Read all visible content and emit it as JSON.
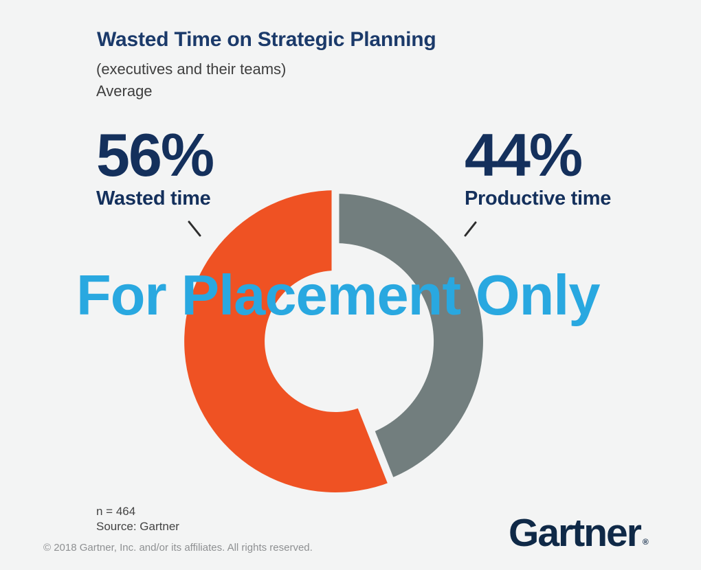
{
  "header": {
    "title": "Wasted Time on Strategic Planning",
    "subtitle1": "(executives and their teams)",
    "subtitle2": "Average"
  },
  "callouts": {
    "left": {
      "value": "56%",
      "label": "Wasted time"
    },
    "right": {
      "value": "44%",
      "label": "Productive time"
    }
  },
  "watermark": "For Placement Only",
  "footnotes": {
    "n": "n = 464",
    "source": "Source: Gartner"
  },
  "copyright": "© 2018 Gartner, Inc. and/or its affiliates. All rights reserved.",
  "logo": {
    "text": "Gartner",
    "registered": "®"
  },
  "colors": {
    "background": "#f3f4f4",
    "navy_title": "#1b3a6a",
    "navy_dark": "#14305c",
    "logo_navy": "#0f2947",
    "watermark_blue": "#29a8e0",
    "text_dark": "#3e3e3e",
    "footnote_gray": "#434343",
    "copyright_gray": "#8e9092",
    "callout_line": "#2d2d2d"
  },
  "chart_data": {
    "type": "donut",
    "title": "Wasted Time on Strategic Planning",
    "subtitle": "(executives and their teams) Average",
    "units": "percent of time",
    "n": 464,
    "source": "Gartner",
    "start_angle_deg": 0,
    "direction": "clockwise",
    "slices": [
      {
        "label": "Productive time",
        "value": 44,
        "color": "#727e7e"
      },
      {
        "label": "Wasted time",
        "value": 56,
        "color": "#ef5223"
      }
    ]
  }
}
